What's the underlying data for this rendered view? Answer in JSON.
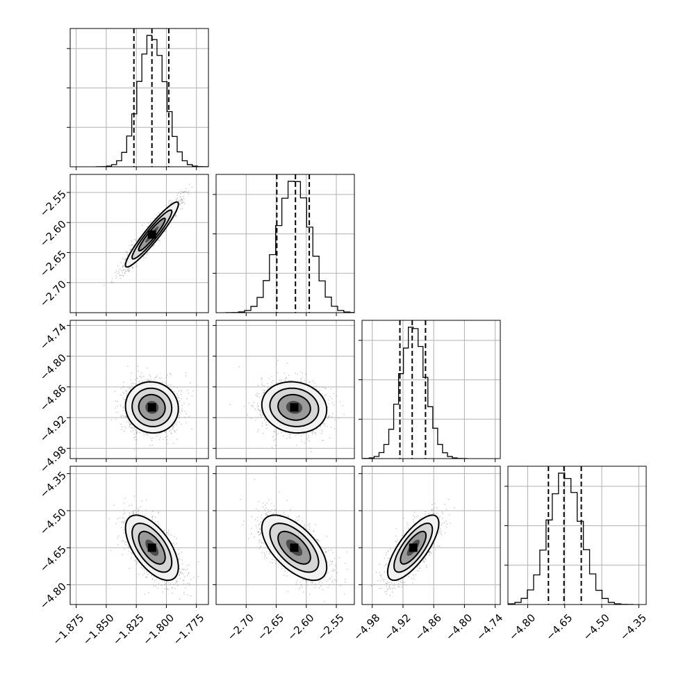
{
  "chart_data": {
    "type": "corner",
    "parameters": [
      {
        "axis_range": [
          -1.88,
          -1.765
        ],
        "ticks": [
          -1.875,
          -1.85,
          -1.825,
          -1.8,
          -1.775
        ],
        "tick_labels": [
          "−1.875",
          "−1.850",
          "−1.825",
          "−1.800",
          "−1.775"
        ],
        "quantiles": [
          -1.827,
          -1.812,
          -1.798
        ],
        "mean": -1.812,
        "sd": 0.011
      },
      {
        "axis_range": [
          -2.75,
          -2.52
        ],
        "ticks": [
          -2.7,
          -2.65,
          -2.6,
          -2.55
        ],
        "tick_labels": [
          "−2.70",
          "−2.65",
          "−2.60",
          "−2.55"
        ],
        "quantiles": [
          -2.649,
          -2.618,
          -2.595
        ],
        "mean": -2.62,
        "sd": 0.027
      },
      {
        "axis_range": [
          -5.0,
          -4.73
        ],
        "ticks": [
          -4.98,
          -4.92,
          -4.86,
          -4.8,
          -4.74
        ],
        "tick_labels": [
          "−4.98",
          "−4.92",
          "−4.86",
          "−4.80",
          "−4.74"
        ],
        "quantiles": [
          -4.926,
          -4.902,
          -4.876
        ],
        "mean": -4.9,
        "sd": 0.025
      },
      {
        "axis_range": [
          -4.88,
          -4.32
        ],
        "ticks": [
          -4.8,
          -4.65,
          -4.5,
          -4.35
        ],
        "tick_labels": [
          "−4.80",
          "−4.65",
          "−4.50",
          "−4.35"
        ],
        "quantiles": [
          -4.716,
          -4.653,
          -4.583
        ],
        "mean": -4.65,
        "sd": 0.066
      }
    ],
    "correlations": {
      "1-0": 0.95,
      "2-0": -0.05,
      "2-1": -0.1,
      "3-0": -0.6,
      "3-1": -0.6,
      "3-2": 0.75
    },
    "grid": true,
    "legend": "none"
  }
}
